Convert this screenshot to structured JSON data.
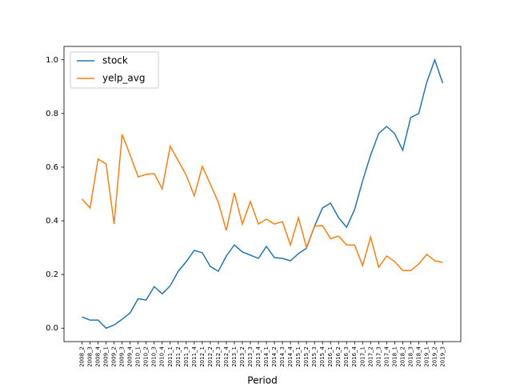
{
  "chart_data": {
    "type": "line",
    "x_label": "Period",
    "categories": [
      "2008_2",
      "2008_3",
      "2008_4",
      "2009_1",
      "2009_2",
      "2009_3",
      "2009_4",
      "2010_1",
      "2010_2",
      "2010_3",
      "2010_4",
      "2011_1",
      "2011_2",
      "2011_3",
      "2011_4",
      "2012_1",
      "2012_2",
      "2012_3",
      "2012_4",
      "2013_1",
      "2013_2",
      "2013_3",
      "2013_4",
      "2014_1",
      "2014_2",
      "2014_3",
      "2014_4",
      "2015_1",
      "2015_2",
      "2015_3",
      "2015_4",
      "2016_1",
      "2016_2",
      "2016_3",
      "2016_4",
      "2017_1",
      "2017_2",
      "2017_3",
      "2017_4",
      "2018_1",
      "2018_2",
      "2018_3",
      "2018_4",
      "2019_1",
      "2019_2",
      "2019_3"
    ],
    "series": [
      {
        "name": "stock",
        "color": "#1f77b4",
        "values": [
          0.042,
          0.03,
          0.03,
          0.0,
          0.012,
          0.033,
          0.057,
          0.11,
          0.105,
          0.155,
          0.128,
          0.158,
          0.212,
          0.248,
          0.29,
          0.281,
          0.23,
          0.212,
          0.269,
          0.31,
          0.284,
          0.272,
          0.26,
          0.305,
          0.263,
          0.26,
          0.251,
          0.278,
          0.298,
          0.38,
          0.448,
          0.466,
          0.412,
          0.376,
          0.442,
          0.549,
          0.645,
          0.725,
          0.752,
          0.725,
          0.663,
          0.785,
          0.8,
          0.916,
          1.0,
          0.913
        ]
      },
      {
        "name": "yelp_avg",
        "color": "#ff7f0e",
        "values": [
          0.481,
          0.448,
          0.63,
          0.612,
          0.388,
          0.722,
          0.645,
          0.564,
          0.573,
          0.576,
          0.519,
          0.678,
          0.624,
          0.57,
          0.493,
          0.603,
          0.537,
          0.469,
          0.364,
          0.504,
          0.388,
          0.472,
          0.388,
          0.406,
          0.388,
          0.397,
          0.31,
          0.412,
          0.301,
          0.38,
          0.382,
          0.334,
          0.343,
          0.31,
          0.31,
          0.233,
          0.34,
          0.227,
          0.269,
          0.248,
          0.215,
          0.215,
          0.239,
          0.275,
          0.251,
          0.245
        ]
      }
    ],
    "ylim": [
      -0.05,
      1.05
    ],
    "yticks": [
      {
        "value": 0,
        "label": "0.0"
      },
      {
        "value": 0.2,
        "label": "0.2"
      },
      {
        "value": 0.4,
        "label": "0.4"
      },
      {
        "value": 0.6,
        "label": "0.6"
      },
      {
        "value": 0.8,
        "label": "0.8"
      },
      {
        "value": 1,
        "label": "1.0"
      }
    ],
    "legend": "upper-left",
    "grid": false
  }
}
